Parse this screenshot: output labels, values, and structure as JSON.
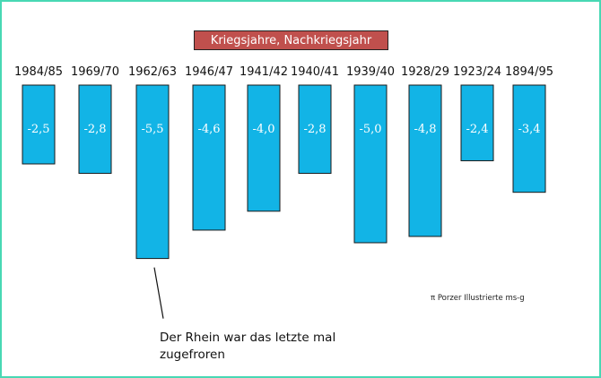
{
  "chart_data": {
    "type": "bar",
    "title": "Kriegsjahre, Nachkriegsjahr",
    "categories": [
      "1984/85",
      "1969/70",
      "1962/63",
      "1946/47",
      "1941/42",
      "1940/41",
      "1939/40",
      "1928/29",
      "1923/24",
      "1894/95"
    ],
    "values": [
      -2.5,
      -2.8,
      -5.5,
      -4.6,
      -4.0,
      -2.8,
      -5.0,
      -4.8,
      -2.4,
      -3.4
    ],
    "value_labels": [
      "-2,5",
      "-2,8",
      "-5,5",
      "-4,6",
      "-4,0",
      "-2,8",
      "-5,0",
      "-4,8",
      "-2,4",
      "-3,4"
    ],
    "bar_color": "#12b4e6",
    "title_background": "#c0504d",
    "border_color": "#48d8b4",
    "annotation": {
      "text": "Der Rhein war das letzte mal zugefroren",
      "points_to": "1962/63"
    },
    "credit": "π Porzer Illustrierte ms-g",
    "grid": false
  }
}
